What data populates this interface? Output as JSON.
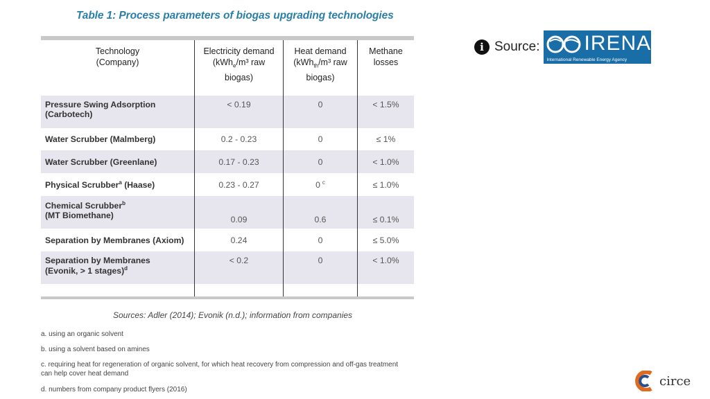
{
  "title": "Table 1: Process parameters of biogas upgrading technologies",
  "table": {
    "headers": {
      "technology": [
        "Technology",
        "(Company)"
      ],
      "electricity": {
        "line1": "Electricity demand",
        "unit_pre": "(kWh",
        "unit_sub": "e",
        "unit_post": "/m³ raw",
        "line3": "biogas)"
      },
      "heat": {
        "line1": "Heat demand",
        "unit_pre": "(kWh",
        "unit_sub": "th",
        "unit_post": "/m³ raw",
        "line3": "biogas)"
      },
      "methane": [
        "Methane",
        "losses"
      ]
    },
    "rows": [
      {
        "tech1": "Pressure Swing Adsorption",
        "tech2": "(Carbotech)",
        "sup": "",
        "elec": "< 0.19",
        "heat": "0",
        "heat_sup": "",
        "methane": "< 1.5%"
      },
      {
        "tech1": "Water Scrubber (Malmberg)",
        "tech2": "",
        "sup": "",
        "elec": "0.2 - 0.23",
        "heat": "0",
        "heat_sup": "",
        "methane": "≤ 1%"
      },
      {
        "tech1": "Water Scrubber (Greenlane)",
        "tech2": "",
        "sup": "",
        "elec": "0.17 - 0.23",
        "heat": "0",
        "heat_sup": "",
        "methane": "< 1.0%"
      },
      {
        "tech1": "Physical Scrubber",
        "tech1_sup": "a",
        "tech1_post": " (Haase)",
        "tech2": "",
        "elec": "0.23 - 0.27",
        "heat": "0",
        "heat_sup": "c",
        "methane": "≤ 1.0%"
      },
      {
        "tech1": "Chemical Scrubber",
        "tech1_sup": "b",
        "tech1_post": "",
        "tech2": "(MT Biomethane)",
        "elec": "0.09",
        "heat": "0.6",
        "heat_sup": "",
        "methane": "≤ 0.1%"
      },
      {
        "tech1": "Separation by Membranes (Axiom)",
        "tech2": "",
        "sup": "",
        "elec": "0.24",
        "heat": "0",
        "heat_sup": "",
        "methane": "≤ 5.0%"
      },
      {
        "tech1": "Separation by Membranes",
        "tech2": "(Evonik, > 1 stages)",
        "tech2_sup": "d",
        "elec": "< 0.2",
        "heat": "0",
        "heat_sup": "",
        "methane": "< 1.0%"
      }
    ]
  },
  "sources": "Sources: Adler (2014); Evonik (n.d.); information from companies",
  "footnotes": [
    "a. using an organic solvent",
    "b. using a solvent based on amines",
    "c. requiring heat for regeneration of organic solvent, for which heat recovery from compression and off-gas treatment can help cover heat demand",
    "d. numbers from company product flyers (2016)"
  ],
  "source_label": "Source:",
  "irena": {
    "word": "IRENA",
    "tagline": "International Renewable Energy Agency",
    "color": "#1a6ea8"
  },
  "circe": {
    "word": "circe"
  }
}
